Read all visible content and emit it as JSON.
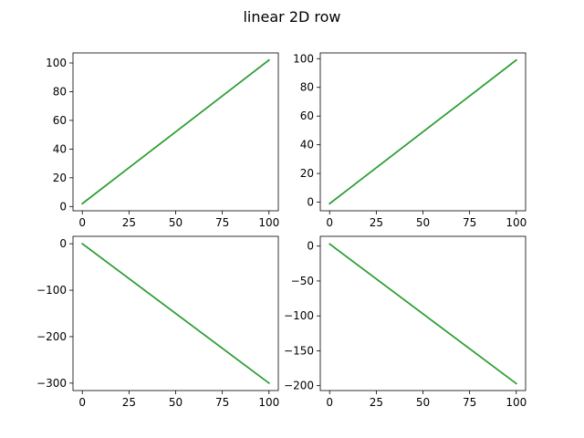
{
  "figure": {
    "title": "linear 2D row"
  },
  "chart_data": [
    {
      "type": "line",
      "title": "",
      "xlabel": "",
      "ylabel": "",
      "xlim": [
        -5,
        105
      ],
      "ylim": [
        -3,
        107
      ],
      "xticks": [
        0,
        25,
        50,
        75,
        100
      ],
      "yticks": [
        0,
        20,
        40,
        60,
        80,
        100
      ],
      "grid": false,
      "series": [
        {
          "color": "#1f77b4",
          "x": [
            0,
            100
          ],
          "y": [
            2,
            102
          ]
        },
        {
          "color": "#2ca02c",
          "x": [
            0,
            100
          ],
          "y": [
            2,
            102
          ]
        },
        {
          "color": "#2ca02c",
          "x": [
            0,
            100
          ],
          "y": [
            2,
            102
          ]
        }
      ]
    },
    {
      "type": "line",
      "title": "",
      "xlabel": "",
      "ylabel": "",
      "xlim": [
        -5,
        105
      ],
      "ylim": [
        -6,
        104
      ],
      "xticks": [
        0,
        25,
        50,
        75,
        100
      ],
      "yticks": [
        0,
        20,
        40,
        60,
        80,
        100
      ],
      "grid": false,
      "series": [
        {
          "color": "#1f77b4",
          "x": [
            0,
            100
          ],
          "y": [
            -1,
            99
          ]
        },
        {
          "color": "#2ca02c",
          "x": [
            0,
            100
          ],
          "y": [
            -1,
            99
          ]
        },
        {
          "color": "#2ca02c",
          "x": [
            0,
            100
          ],
          "y": [
            -1,
            99
          ]
        }
      ]
    },
    {
      "type": "line",
      "title": "",
      "xlabel": "",
      "ylabel": "",
      "xlim": [
        -5,
        105
      ],
      "ylim": [
        -316,
        16
      ],
      "xticks": [
        0,
        25,
        50,
        75,
        100
      ],
      "yticks": [
        0,
        -100,
        -200,
        -300
      ],
      "grid": false,
      "series": [
        {
          "color": "#1f77b4",
          "x": [
            0,
            100
          ],
          "y": [
            0,
            -300
          ]
        },
        {
          "color": "#2ca02c",
          "x": [
            0,
            100
          ],
          "y": [
            0,
            -300
          ]
        },
        {
          "color": "#2ca02c",
          "x": [
            0,
            100
          ],
          "y": [
            0,
            -300
          ]
        }
      ]
    },
    {
      "type": "line",
      "title": "",
      "xlabel": "",
      "ylabel": "",
      "xlim": [
        -5,
        105
      ],
      "ylim": [
        -207,
        14
      ],
      "xticks": [
        0,
        25,
        50,
        75,
        100
      ],
      "yticks": [
        0,
        -50,
        -100,
        -150,
        -200
      ],
      "grid": false,
      "series": [
        {
          "color": "#1f77b4",
          "x": [
            0,
            100
          ],
          "y": [
            3,
            -197
          ]
        },
        {
          "color": "#2ca02c",
          "x": [
            0,
            100
          ],
          "y": [
            3,
            -197
          ]
        },
        {
          "color": "#2ca02c",
          "x": [
            0,
            100
          ],
          "y": [
            3,
            -197
          ]
        }
      ]
    }
  ]
}
